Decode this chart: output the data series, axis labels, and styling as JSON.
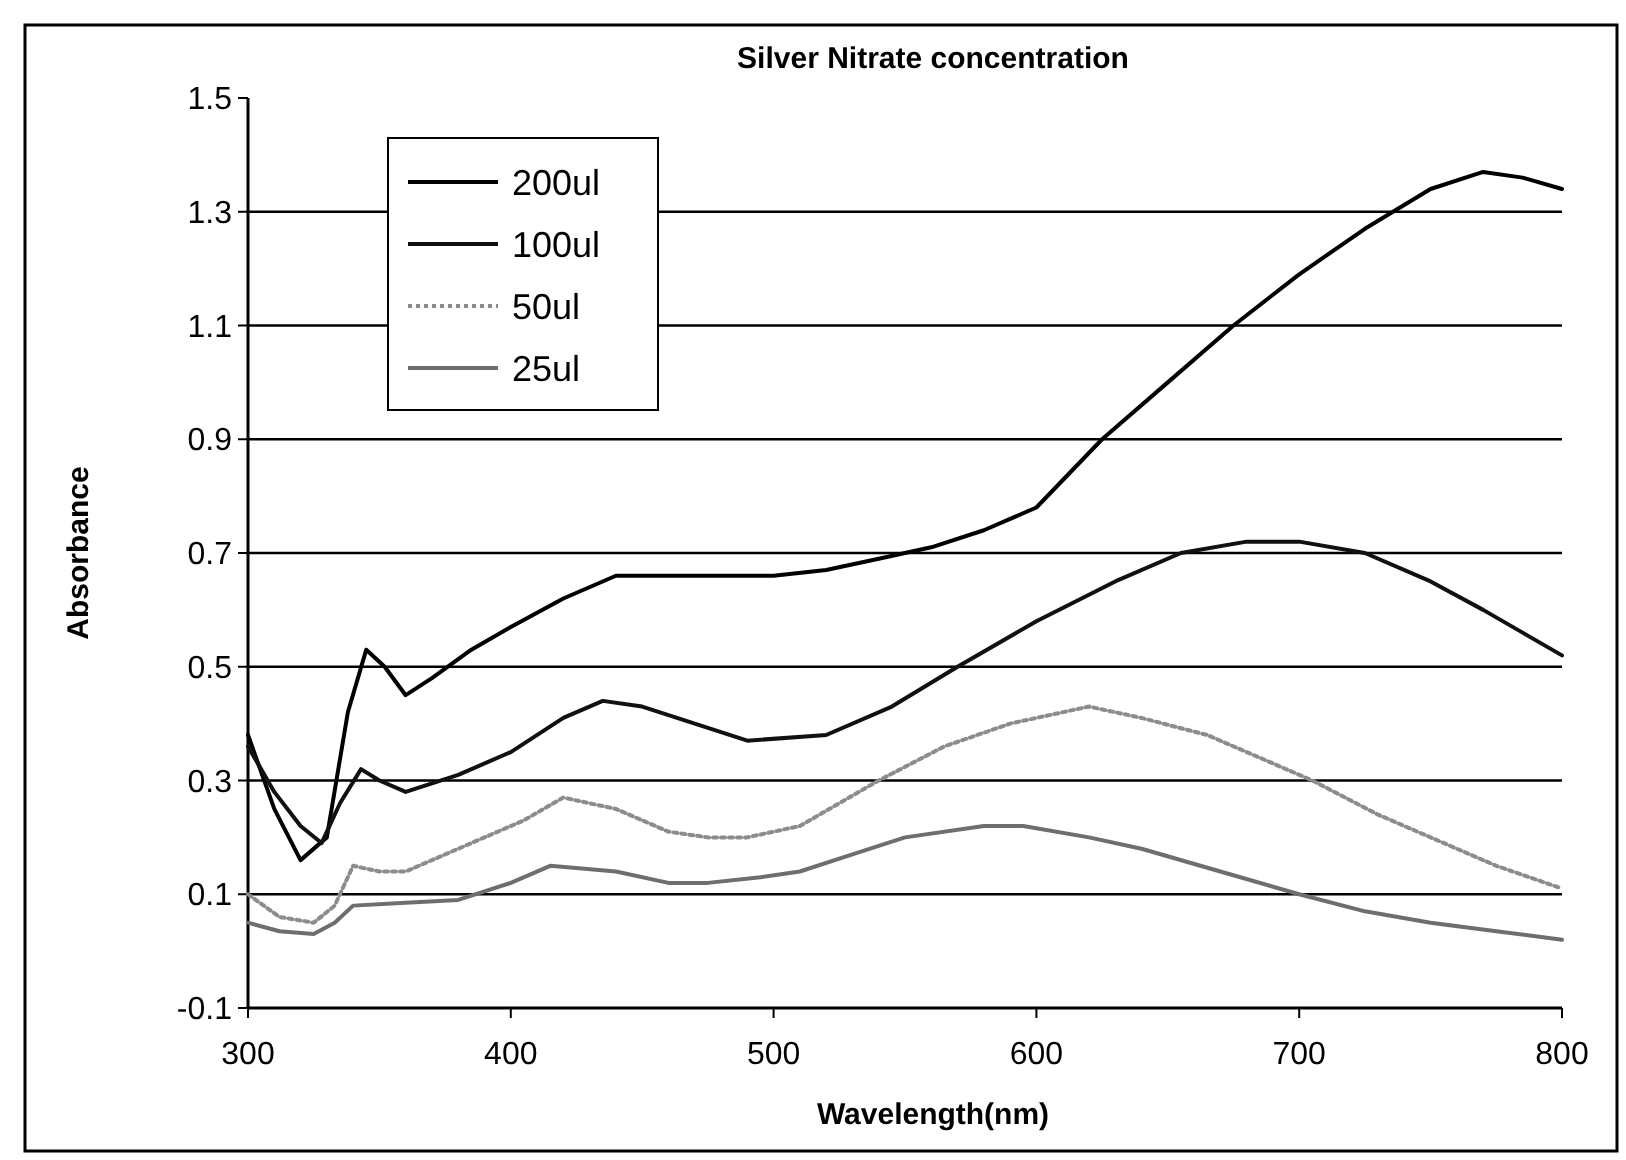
{
  "chart_data": {
    "type": "line",
    "title": "Silver Nitrate concentration",
    "xlabel": "Wavelength(nm)",
    "ylabel": "Absorbance",
    "xlim": [
      300,
      800
    ],
    "xticks": [
      300,
      400,
      500,
      600,
      700,
      800
    ],
    "ylim": [
      -0.1,
      1.5
    ],
    "yticks": [
      -0.1,
      0.1,
      0.3,
      0.5,
      0.7,
      0.9,
      1.1,
      1.3,
      1.5
    ],
    "grid": "y",
    "legend": "top left",
    "marker": "none",
    "series": [
      {
        "name": "200ul",
        "color": "#000000",
        "line_style": "solid",
        "x": [
          300,
          310,
          320,
          330,
          338,
          345,
          352,
          360,
          370,
          385,
          400,
          420,
          440,
          460,
          500,
          520,
          540,
          560,
          580,
          600,
          625,
          650,
          675,
          700,
          725,
          750,
          770,
          785,
          800
        ],
        "values": [
          0.38,
          0.25,
          0.16,
          0.2,
          0.42,
          0.53,
          0.5,
          0.45,
          0.48,
          0.53,
          0.57,
          0.62,
          0.66,
          0.66,
          0.66,
          0.67,
          0.69,
          0.71,
          0.74,
          0.78,
          0.9,
          1.0,
          1.1,
          1.19,
          1.27,
          1.34,
          1.37,
          1.36,
          1.34
        ]
      },
      {
        "name": "100ul",
        "color": "#111111",
        "line_style": "solid",
        "x": [
          300,
          310,
          320,
          328,
          335,
          343,
          350,
          360,
          380,
          400,
          420,
          435,
          450,
          470,
          490,
          520,
          545,
          570,
          600,
          630,
          655,
          680,
          700,
          725,
          750,
          770,
          785,
          800
        ],
        "values": [
          0.36,
          0.28,
          0.22,
          0.19,
          0.26,
          0.32,
          0.3,
          0.28,
          0.31,
          0.35,
          0.41,
          0.44,
          0.43,
          0.4,
          0.37,
          0.38,
          0.43,
          0.5,
          0.58,
          0.65,
          0.7,
          0.72,
          0.72,
          0.7,
          0.65,
          0.6,
          0.56,
          0.52
        ]
      },
      {
        "name": "50ul",
        "color": "#8c8c8c",
        "line_style": "dotted",
        "x": [
          300,
          312,
          325,
          333,
          340,
          350,
          360,
          375,
          390,
          405,
          420,
          440,
          460,
          475,
          490,
          510,
          540,
          565,
          590,
          620,
          640,
          665,
          685,
          705,
          730,
          750,
          775,
          800
        ],
        "values": [
          0.1,
          0.06,
          0.05,
          0.08,
          0.15,
          0.14,
          0.14,
          0.17,
          0.2,
          0.23,
          0.27,
          0.25,
          0.21,
          0.2,
          0.2,
          0.22,
          0.3,
          0.36,
          0.4,
          0.43,
          0.41,
          0.38,
          0.34,
          0.3,
          0.24,
          0.2,
          0.15,
          0.11
        ]
      },
      {
        "name": "25ul",
        "color": "#6e6e6e",
        "line_style": "solid",
        "x": [
          300,
          312,
          325,
          333,
          340,
          360,
          380,
          400,
          415,
          440,
          460,
          475,
          495,
          510,
          530,
          550,
          580,
          595,
          620,
          640,
          670,
          700,
          725,
          750,
          775,
          800
        ],
        "values": [
          0.05,
          0.035,
          0.03,
          0.05,
          0.08,
          0.085,
          0.09,
          0.12,
          0.15,
          0.14,
          0.12,
          0.12,
          0.13,
          0.14,
          0.17,
          0.2,
          0.22,
          0.22,
          0.2,
          0.18,
          0.14,
          0.1,
          0.07,
          0.05,
          0.035,
          0.02
        ]
      }
    ]
  }
}
